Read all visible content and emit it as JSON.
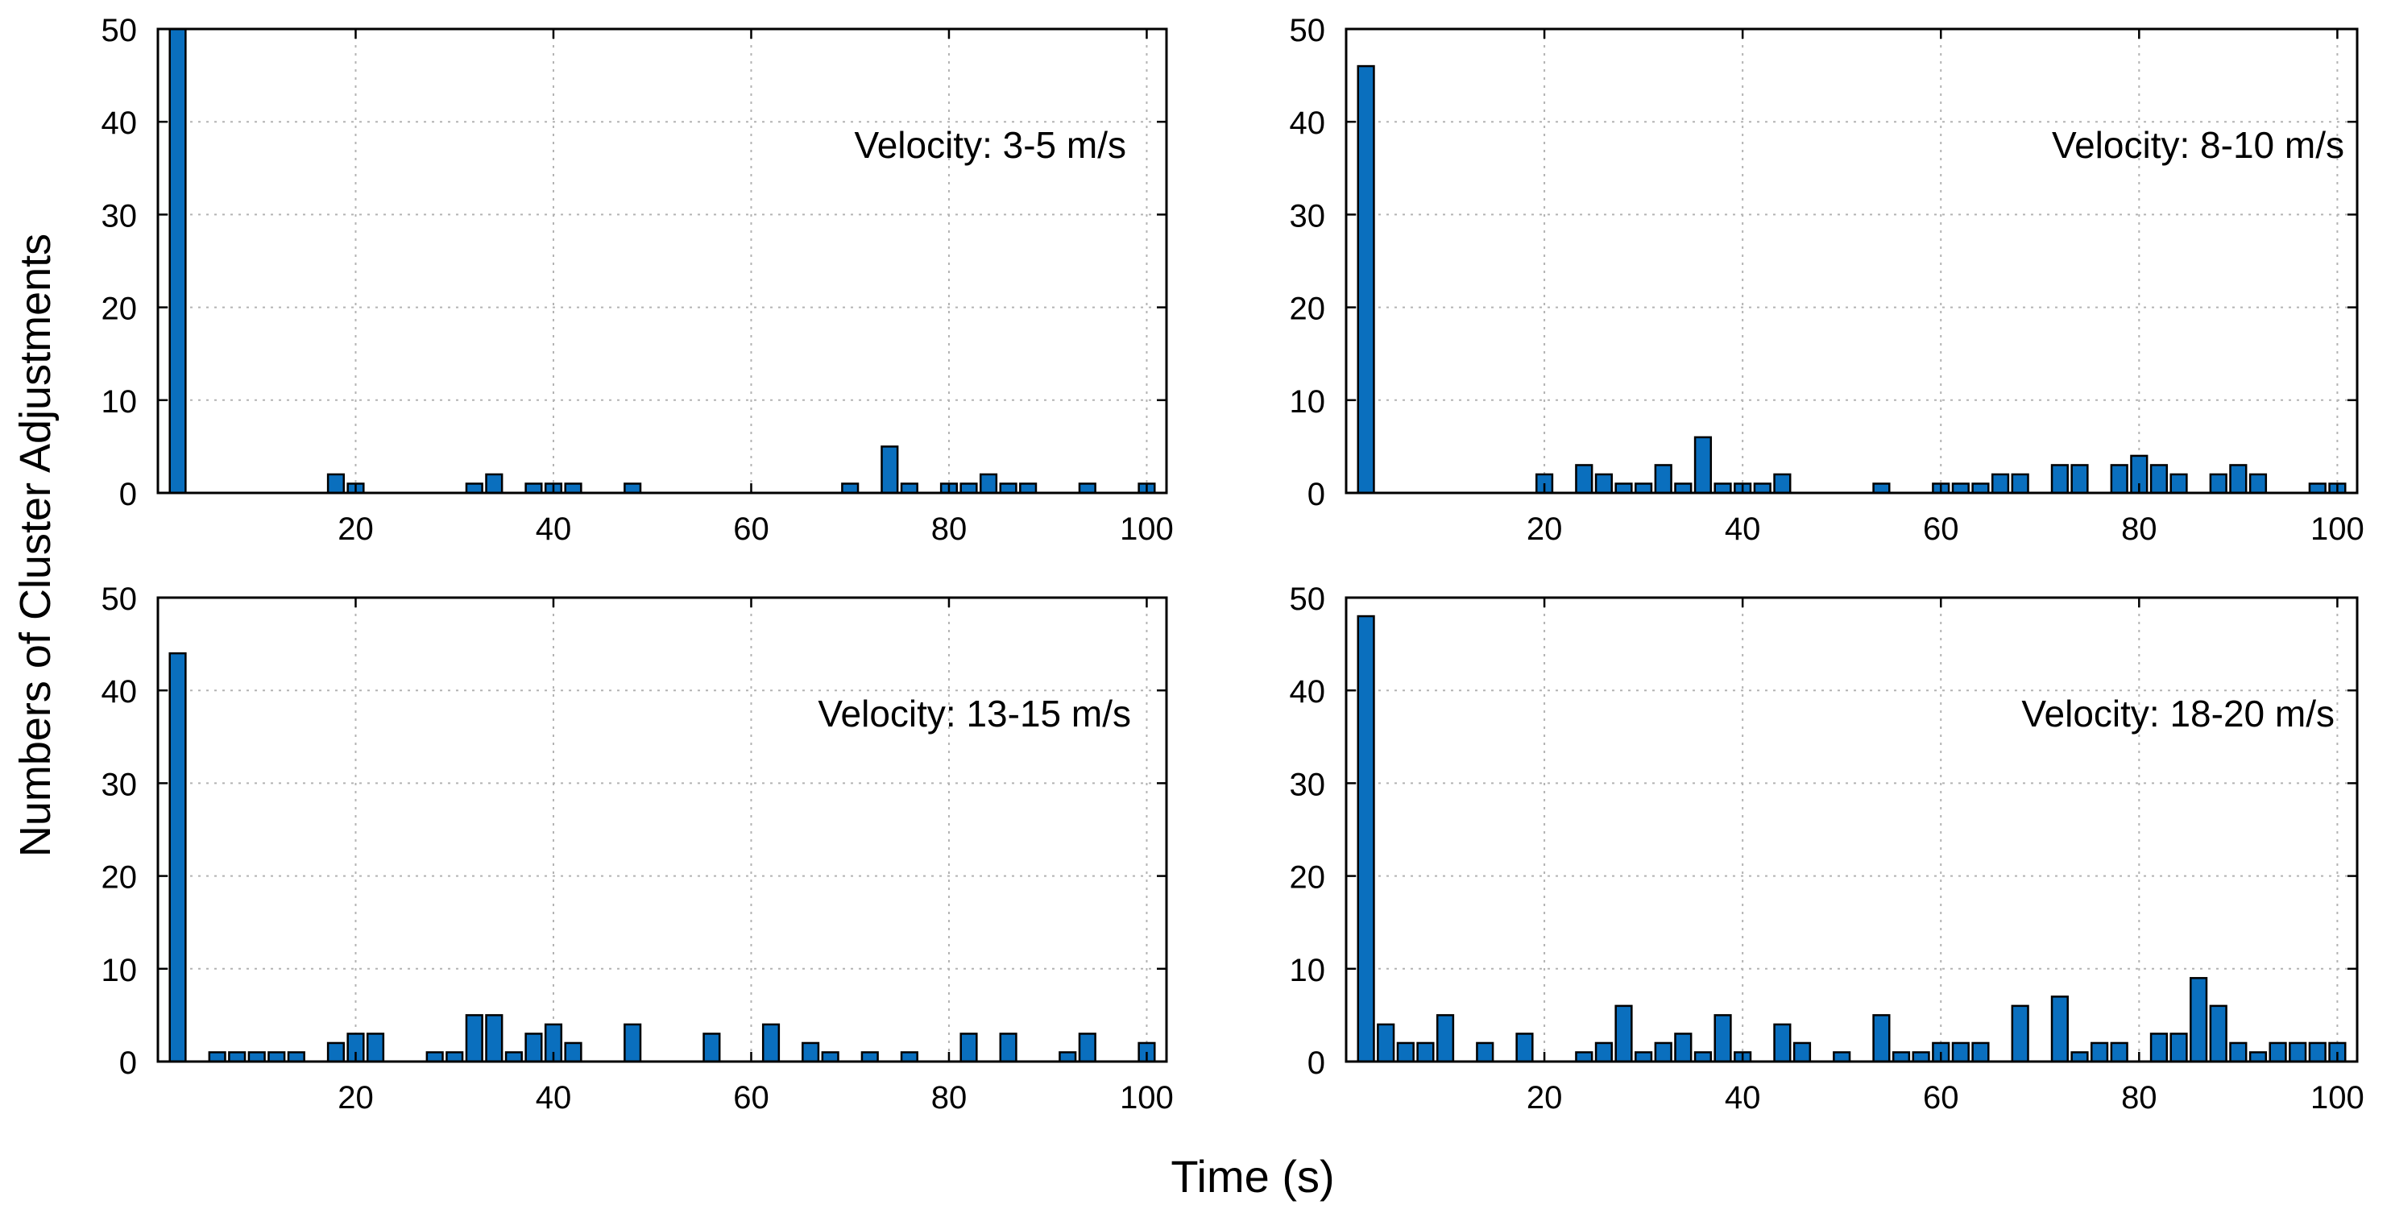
{
  "figure": {
    "ylabel": "Numbers of Cluster Adjustments",
    "xlabel": "Time (s)"
  },
  "colors": {
    "bar": "#0a6fbe",
    "edge": "#000000",
    "grid": "#b3b3b3"
  },
  "chart_data": [
    {
      "type": "bar",
      "annotation": "Velocity: 3-5 m/s",
      "xticks": [
        "20",
        "40",
        "60",
        "80",
        "100"
      ],
      "yticks": [
        "0",
        "10",
        "20",
        "30",
        "40",
        "50"
      ],
      "xlim": [
        0,
        102
      ],
      "ylim": [
        0,
        50
      ],
      "x": [
        2,
        18,
        20,
        32,
        34,
        38,
        40,
        42,
        48,
        70,
        74,
        76,
        80,
        82,
        84,
        86,
        88,
        94,
        100
      ],
      "values": [
        50,
        2,
        1,
        1,
        2,
        1,
        1,
        1,
        1,
        1,
        5,
        1,
        1,
        1,
        2,
        1,
        1,
        1,
        1
      ]
    },
    {
      "type": "bar",
      "annotation": "Velocity: 8-10 m/s",
      "xticks": [
        "20",
        "40",
        "60",
        "80",
        "100"
      ],
      "yticks": [
        "0",
        "10",
        "20",
        "30",
        "40",
        "50"
      ],
      "xlim": [
        0,
        102
      ],
      "ylim": [
        0,
        50
      ],
      "x": [
        2,
        20,
        24,
        26,
        28,
        30,
        32,
        34,
        36,
        38,
        40,
        42,
        44,
        54,
        60,
        62,
        64,
        66,
        68,
        72,
        74,
        78,
        80,
        82,
        84,
        88,
        90,
        92,
        98,
        100
      ],
      "values": [
        46,
        2,
        3,
        2,
        1,
        1,
        3,
        1,
        6,
        1,
        1,
        1,
        2,
        1,
        1,
        1,
        1,
        2,
        2,
        3,
        3,
        3,
        4,
        3,
        2,
        2,
        3,
        2,
        1,
        1
      ]
    },
    {
      "type": "bar",
      "annotation": "Velocity: 13-15 m/s",
      "xticks": [
        "20",
        "40",
        "60",
        "80",
        "100"
      ],
      "yticks": [
        "0",
        "10",
        "20",
        "30",
        "40",
        "50"
      ],
      "xlim": [
        0,
        102
      ],
      "ylim": [
        0,
        50
      ],
      "x": [
        2,
        6,
        8,
        10,
        12,
        14,
        16,
        18,
        20,
        22,
        24,
        26,
        28,
        30,
        32,
        34,
        36,
        38,
        40,
        42,
        44,
        46,
        48,
        50,
        52,
        54,
        56,
        58,
        60,
        62,
        64,
        66,
        68,
        70,
        72,
        74,
        76,
        78,
        80,
        82,
        84,
        86,
        88,
        90,
        92,
        94,
        96,
        98,
        100
      ],
      "values": [
        44,
        1,
        1,
        1,
        1,
        1,
        0,
        2,
        3,
        3,
        0,
        0,
        1,
        1,
        5,
        5,
        1,
        3,
        4,
        2,
        0,
        0,
        4,
        0,
        0,
        0,
        3,
        0,
        0,
        4,
        0,
        2,
        1,
        0,
        1,
        0,
        1,
        0,
        0,
        3,
        0,
        3,
        0,
        0,
        1,
        3,
        0,
        0,
        2
      ]
    },
    {
      "type": "bar",
      "annotation": "Velocity: 18-20 m/s",
      "xticks": [
        "20",
        "40",
        "60",
        "80",
        "100"
      ],
      "yticks": [
        "0",
        "10",
        "20",
        "30",
        "40",
        "50"
      ],
      "xlim": [
        0,
        102
      ],
      "ylim": [
        0,
        50
      ],
      "x": [
        2,
        4,
        6,
        8,
        10,
        12,
        14,
        16,
        18,
        20,
        22,
        24,
        26,
        28,
        30,
        32,
        34,
        36,
        38,
        40,
        42,
        44,
        46,
        48,
        50,
        52,
        54,
        56,
        58,
        60,
        62,
        64,
        66,
        68,
        70,
        72,
        74,
        76,
        78,
        80,
        82,
        84,
        86,
        88,
        90,
        92,
        94,
        96,
        98,
        100
      ],
      "values": [
        48,
        4,
        2,
        2,
        5,
        0,
        2,
        0,
        3,
        0,
        0,
        1,
        2,
        6,
        1,
        2,
        3,
        1,
        5,
        1,
        0,
        4,
        2,
        0,
        1,
        0,
        5,
        1,
        1,
        2,
        2,
        2,
        0,
        6,
        0,
        7,
        1,
        2,
        2,
        0,
        3,
        3,
        9,
        6,
        2,
        1,
        2,
        2,
        2,
        2
      ]
    }
  ]
}
